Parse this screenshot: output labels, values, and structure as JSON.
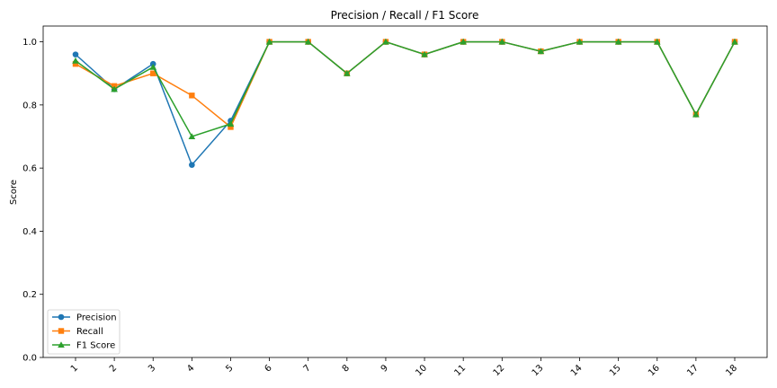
{
  "chart_data": {
    "type": "line",
    "title": "Precision / Recall / F1 Score",
    "xlabel": "",
    "ylabel": "Score",
    "categories": [
      "1",
      "2",
      "3",
      "4",
      "5",
      "6",
      "7",
      "8",
      "9",
      "10",
      "11",
      "12",
      "13",
      "14",
      "15",
      "16",
      "17",
      "18"
    ],
    "ylim": [
      0,
      1.05
    ],
    "yticks": [
      "0.0",
      "0.2",
      "0.4",
      "0.6",
      "0.8",
      "1.0"
    ],
    "ytick_values": [
      0,
      0.2,
      0.4,
      0.6,
      0.8,
      1.0
    ],
    "grid": false,
    "legend_position": "lower-left",
    "series": [
      {
        "name": "Precision",
        "color": "#1f77b4",
        "marker": "circle",
        "values": [
          0.96,
          0.85,
          0.93,
          0.61,
          0.75,
          1.0,
          1.0,
          0.9,
          1.0,
          0.96,
          1.0,
          1.0,
          0.97,
          1.0,
          1.0,
          1.0,
          0.77,
          1.0
        ]
      },
      {
        "name": "Recall",
        "color": "#ff7f0e",
        "marker": "square",
        "values": [
          0.93,
          0.86,
          0.9,
          0.83,
          0.73,
          1.0,
          1.0,
          0.9,
          1.0,
          0.96,
          1.0,
          1.0,
          0.97,
          1.0,
          1.0,
          1.0,
          0.77,
          1.0
        ]
      },
      {
        "name": "F1 Score",
        "color": "#2ca02c",
        "marker": "triangle",
        "values": [
          0.94,
          0.85,
          0.92,
          0.7,
          0.74,
          1.0,
          1.0,
          0.9,
          1.0,
          0.96,
          1.0,
          1.0,
          0.97,
          1.0,
          1.0,
          1.0,
          0.77,
          1.0
        ]
      }
    ]
  }
}
